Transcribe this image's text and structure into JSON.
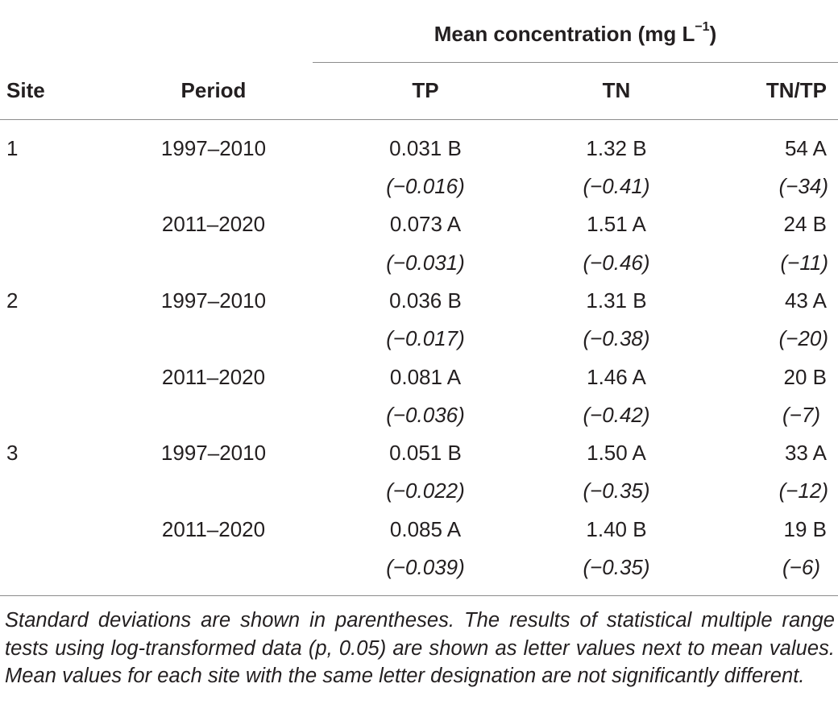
{
  "header": {
    "group_label": "Mean concentration (mg L",
    "group_unit_exponent": "−1",
    "group_label_close": ")",
    "columns": [
      "Site",
      "Period",
      "TP",
      "TN",
      "TN/TP"
    ]
  },
  "rows": [
    {
      "site": "1",
      "period": "1997–2010",
      "tp": "0.031 B",
      "tn": "1.32 B",
      "ratio": "54 A",
      "tp_sd": "(−0.016)",
      "tn_sd": "(−0.41)",
      "ratio_sd": "(−34)"
    },
    {
      "site": "",
      "period": "2011–2020",
      "tp": "0.073 A",
      "tn": "1.51 A",
      "ratio": "24 B",
      "tp_sd": "(−0.031)",
      "tn_sd": "(−0.46)",
      "ratio_sd": "(−11)"
    },
    {
      "site": "2",
      "period": "1997–2010",
      "tp": "0.036 B",
      "tn": "1.31 B",
      "ratio": "43 A",
      "tp_sd": "(−0.017)",
      "tn_sd": "(−0.38)",
      "ratio_sd": "(−20)"
    },
    {
      "site": "",
      "period": "2011–2020",
      "tp": "0.081 A",
      "tn": "1.46 A",
      "ratio": "20 B",
      "tp_sd": "(−0.036)",
      "tn_sd": "(−0.42)",
      "ratio_sd": "(−7)"
    },
    {
      "site": "3",
      "period": "1997–2010",
      "tp": "0.051 B",
      "tn": "1.50 A",
      "ratio": "33 A",
      "tp_sd": "(−0.022)",
      "tn_sd": "(−0.35)",
      "ratio_sd": "(−12)"
    },
    {
      "site": "",
      "period": "2011–2020",
      "tp": "0.085 A",
      "tn": "1.40 B",
      "ratio": "19 B",
      "tp_sd": "(−0.039)",
      "tn_sd": "(−0.35)",
      "ratio_sd": "(−6)"
    }
  ],
  "footnote": "Standard deviations are shown in parentheses. The results of statistical multiple range tests using log-transformed data (p, 0.05) are shown as letter values next to mean values. Mean values for each site with the same letter designation are not significantly different."
}
